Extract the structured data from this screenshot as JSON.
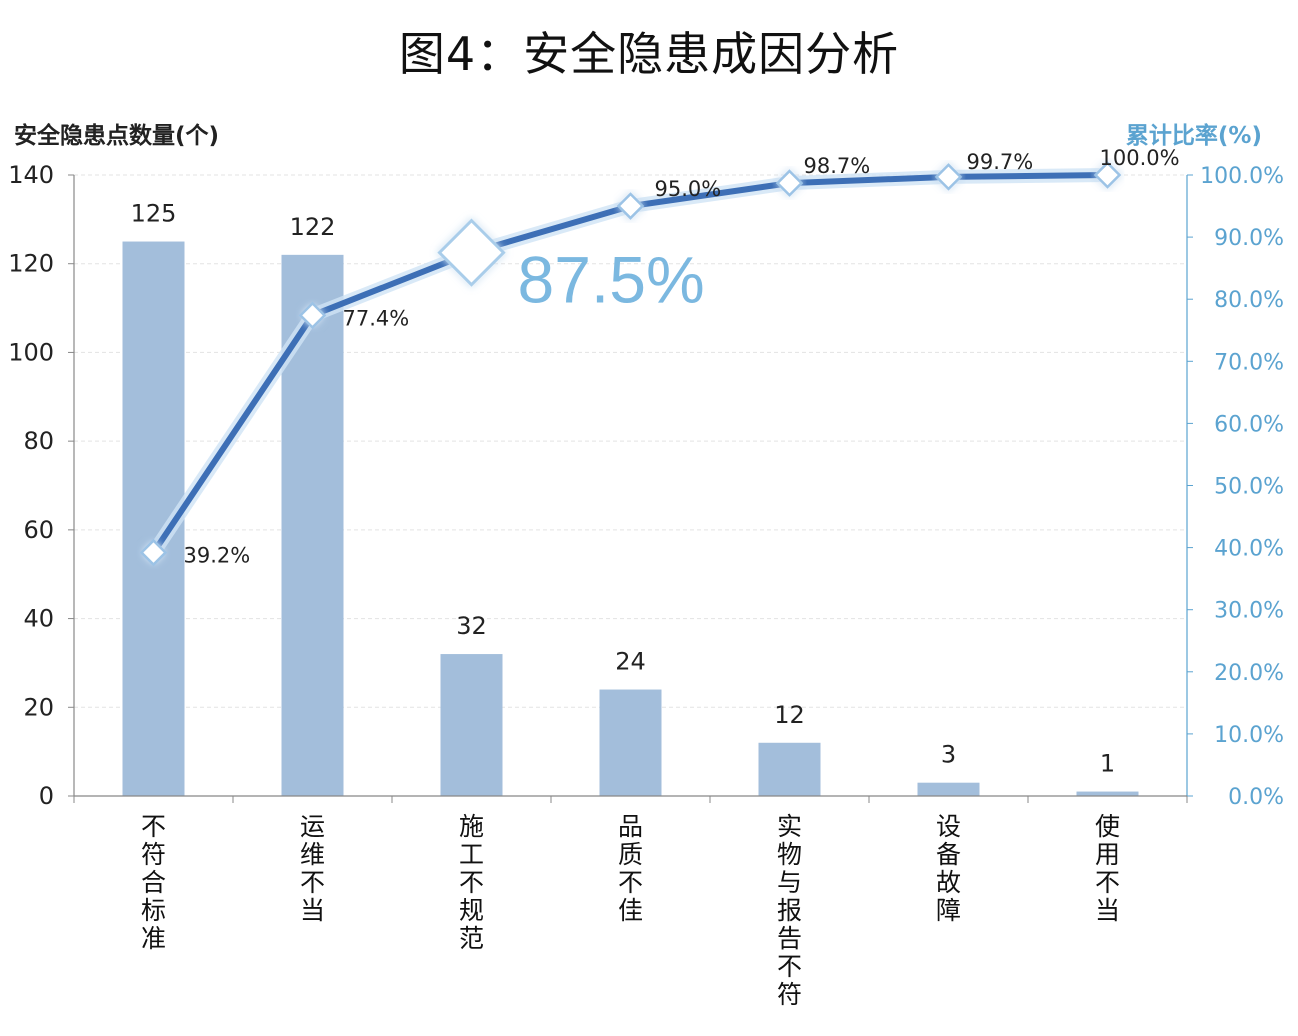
{
  "title": "图4：安全隐患成因分析",
  "chart_data": {
    "type": "bar",
    "categories": [
      "不符合标准",
      "运维不当",
      "施工不规范",
      "品质不佳",
      "实物与报告不符",
      "设备故障",
      "使用不当"
    ],
    "series": [
      {
        "type": "bar",
        "values": [
          125,
          122,
          32,
          24,
          12,
          3,
          1
        ]
      },
      {
        "type": "line",
        "values": [
          39.2,
          77.4,
          87.5,
          95.0,
          98.7,
          99.7,
          100.0
        ],
        "labels": [
          "39.2%",
          "77.4%",
          "",
          "95.0%",
          "98.7%",
          "99.7%",
          "100.0%"
        ]
      }
    ],
    "ylabel": "安全隐患点数量(个)",
    "y2label": "累计比率(%)",
    "ylim": [
      0,
      140
    ],
    "yticks": [
      "0",
      "20",
      "40",
      "60",
      "80",
      "100",
      "120",
      "140"
    ],
    "y2lim": [
      0,
      100
    ],
    "y2ticks": [
      "0.0%",
      "10.0%",
      "20.0%",
      "30.0%",
      "40.0%",
      "50.0%",
      "60.0%",
      "70.0%",
      "80.0%",
      "90.0%",
      "100.0%"
    ],
    "highlight": {
      "category": "施工不规范",
      "label": "87.5%"
    },
    "grid": true,
    "colors": {
      "bar": "#a3bedb",
      "line": "#3d6fb6",
      "marker_fill": "#ffffff",
      "right_axis": "#5ba3d0",
      "highlight_text": "#7bb8e0"
    }
  }
}
